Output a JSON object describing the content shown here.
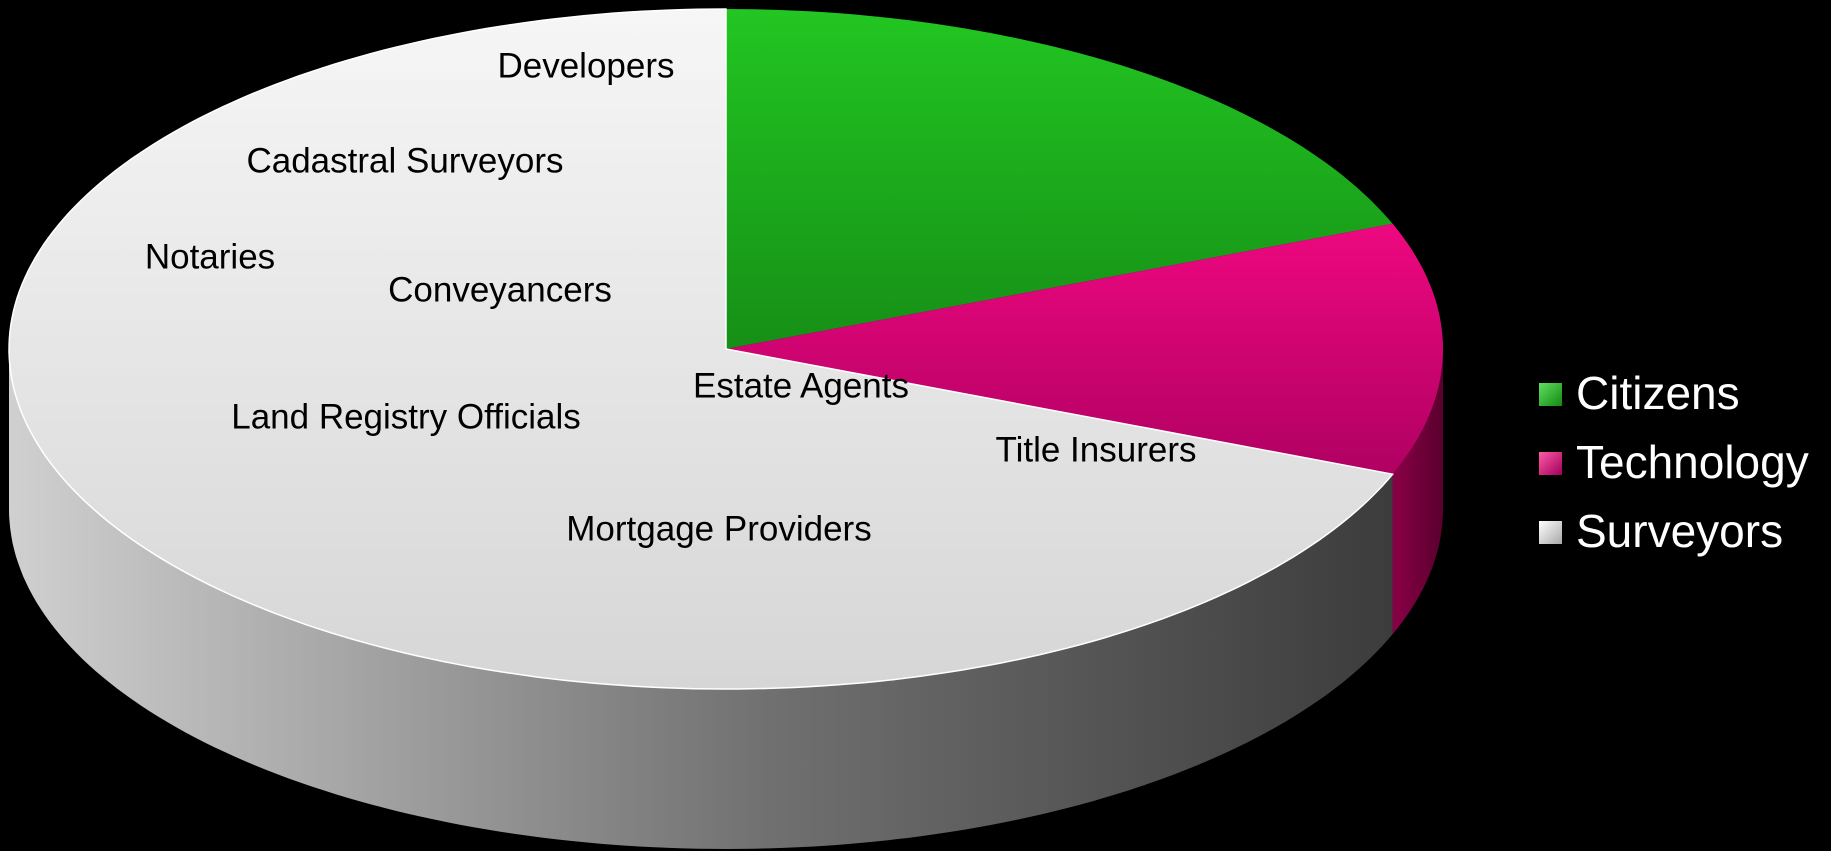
{
  "chart_data": {
    "type": "pie",
    "categories": [
      "Citizens",
      "Technology",
      "Surveyors"
    ],
    "values": [
      19,
      12,
      69
    ],
    "colors": [
      "#1fb81f",
      "#d8006f",
      "#e6e6e6"
    ],
    "legend": "right",
    "annotations": [
      "Developers",
      "Cadastral Surveyors",
      "Notaries",
      "Conveyancers",
      "Land Registry Officials",
      "Estate Agents",
      "Title Insurers",
      "Mortgage Providers"
    ]
  }
}
